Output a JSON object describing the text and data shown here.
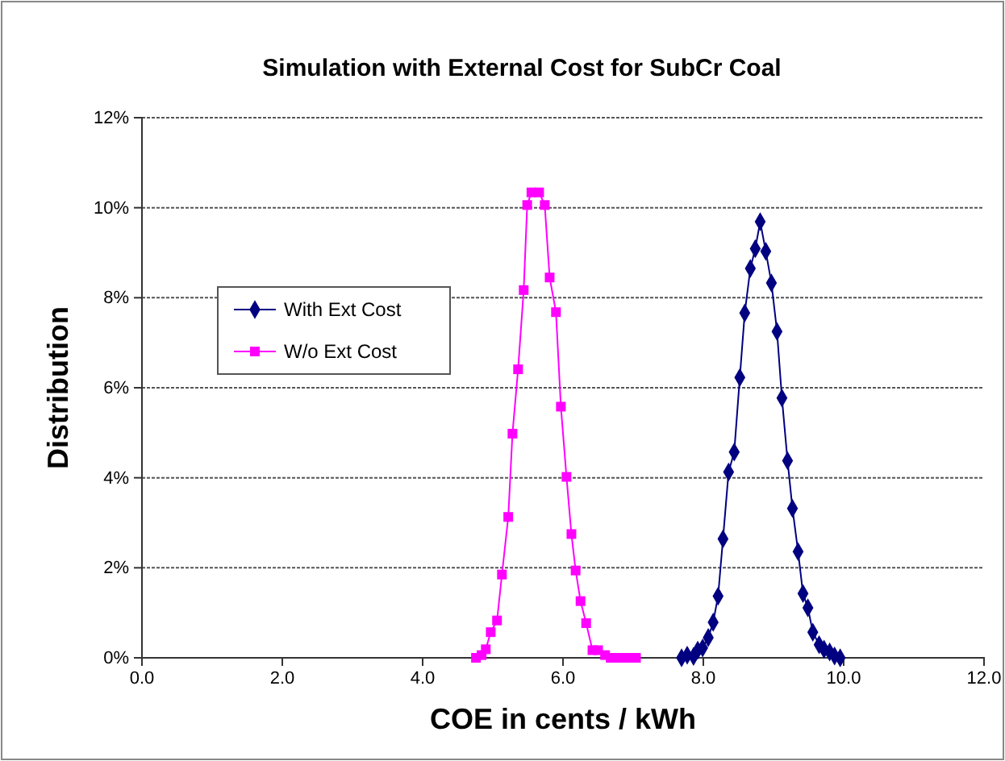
{
  "chart_data": {
    "type": "line",
    "title": "Simulation with External Cost for SubCr Coal",
    "xlabel": "COE in cents / kWh",
    "ylabel": "Distribution",
    "xlim": [
      0,
      12
    ],
    "xticks": [
      {
        "value": 0,
        "label": "0.0"
      },
      {
        "value": 2,
        "label": "2.0"
      },
      {
        "value": 4,
        "label": "4.0"
      },
      {
        "value": 6,
        "label": "6.0"
      },
      {
        "value": 8,
        "label": "8.0"
      },
      {
        "value": 10,
        "label": "10.0"
      },
      {
        "value": 12,
        "label": "12.0"
      }
    ],
    "ylim": [
      0,
      12
    ],
    "yticks": [
      {
        "value": 0,
        "label": "0%"
      },
      {
        "value": 2,
        "label": "2%"
      },
      {
        "value": 4,
        "label": "4%"
      },
      {
        "value": 6,
        "label": "6%"
      },
      {
        "value": 8,
        "label": "8%"
      },
      {
        "value": 10,
        "label": "10%"
      },
      {
        "value": 12,
        "label": "12%"
      }
    ],
    "grid": "y",
    "legend": "left",
    "line_style": "solid",
    "series": [
      {
        "name": "With Ext Cost",
        "color": "#000080",
        "marker": "diamond",
        "x": [
          7.69,
          7.77,
          7.86,
          7.92,
          7.99,
          8.07,
          8.14,
          8.21,
          8.28,
          8.36,
          8.44,
          8.52,
          8.59,
          8.67,
          8.74,
          8.81,
          8.89,
          8.97,
          9.05,
          9.12,
          9.2,
          9.27,
          9.35,
          9.42,
          9.49,
          9.56,
          9.65,
          9.72,
          9.8,
          9.87,
          9.95
        ],
        "values": [
          0,
          0.06,
          0.03,
          0.17,
          0.22,
          0.45,
          0.79,
          1.37,
          2.64,
          4.13,
          4.57,
          6.23,
          7.66,
          8.65,
          9.09,
          9.69,
          9.03,
          8.33,
          7.25,
          5.77,
          4.38,
          3.32,
          2.36,
          1.43,
          1.11,
          0.57,
          0.29,
          0.19,
          0.13,
          0.04,
          0
        ]
      },
      {
        "name": "W/o Ext Cost",
        "color": "#ff00ff",
        "marker": "square",
        "x": [
          4.76,
          4.84,
          4.9,
          4.97,
          5.06,
          5.13,
          5.22,
          5.28,
          5.36,
          5.44,
          5.49,
          5.55,
          5.66,
          5.74,
          5.81,
          5.9,
          5.97,
          6.05,
          6.12,
          6.18,
          6.25,
          6.33,
          6.42,
          6.5,
          6.6,
          6.68,
          6.81,
          6.93,
          7.04
        ],
        "values": [
          0,
          0.06,
          0.19,
          0.57,
          0.83,
          1.85,
          3.13,
          4.98,
          6.41,
          8.17,
          10.06,
          10.34,
          10.34,
          10.06,
          8.45,
          7.68,
          5.58,
          4.02,
          2.75,
          1.94,
          1.26,
          0.77,
          0.17,
          0.17,
          0.06,
          0,
          0,
          0,
          0
        ]
      }
    ]
  }
}
